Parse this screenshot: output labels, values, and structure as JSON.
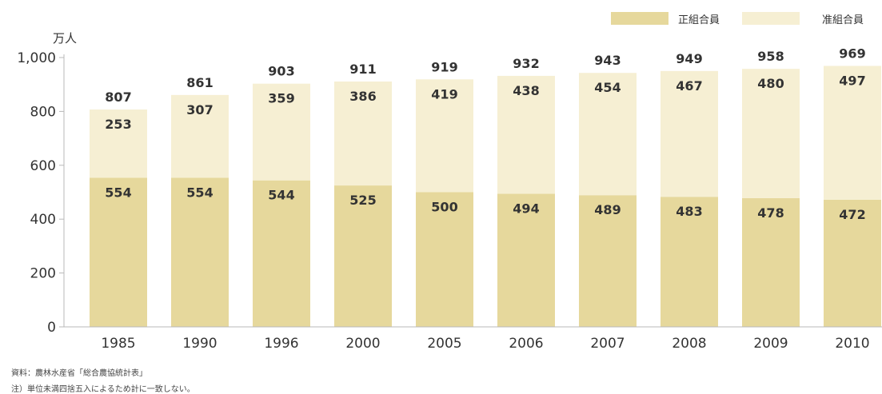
{
  "chart_data": {
    "type": "bar",
    "stacked": true,
    "unit": "万人",
    "categories": [
      "1985",
      "1990",
      "1996",
      "2000",
      "2005",
      "2006",
      "2007",
      "2008",
      "2009",
      "2010"
    ],
    "series": [
      {
        "name": "正組合員",
        "color": "#e6d89c",
        "values": [
          554,
          554,
          544,
          525,
          500,
          494,
          489,
          483,
          478,
          472
        ]
      },
      {
        "name": "准組合員",
        "color": "#f6efd3",
        "values": [
          253,
          307,
          359,
          386,
          419,
          438,
          454,
          467,
          480,
          497
        ]
      }
    ],
    "totals": [
      807,
      861,
      903,
      911,
      919,
      932,
      943,
      949,
      958,
      969
    ],
    "yticks": [
      "0",
      "200",
      "400",
      "600",
      "800",
      "1,000"
    ],
    "ytick_values": [
      0,
      200,
      400,
      600,
      800,
      1000
    ],
    "ylim": [
      0,
      1000
    ],
    "legend_position": "top-right"
  },
  "legend": {
    "series1": "正組合員",
    "series2": "准組合員"
  },
  "notes": {
    "source": "資料：農林水産省「総合農協統計表」",
    "note": "注）単位未満四捨五入によるため計に一致しない。"
  }
}
